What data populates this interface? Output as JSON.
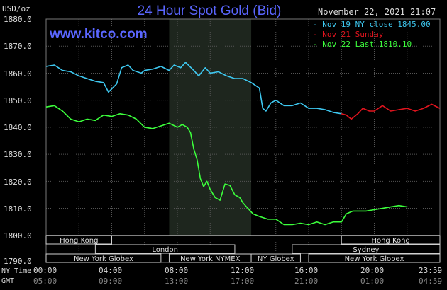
{
  "header": {
    "title": "24 Hour Spot Gold (Bid)",
    "site": "www.kitco.com",
    "unit": "USD/oz",
    "timestamp": "November 22, 2021 21:07"
  },
  "colors": {
    "background": "#000000",
    "grid": "#555555",
    "nymex_band": "#1e261e",
    "blue": "#3ec8f0",
    "red": "#e0141e",
    "green": "#3cff3c",
    "title_blue": "#5a66ff",
    "session_box": "#d0d0d0"
  },
  "side_labels": {
    "ny_time": "NY Time",
    "gmt": "GMT"
  },
  "chart_data": {
    "type": "line",
    "title": "24 Hour Spot Gold (Bid)",
    "ylabel": "USD/oz",
    "ylim": [
      1790,
      1880
    ],
    "yticks": [
      "1880.0",
      "1870.0",
      "1860.0",
      "1850.0",
      "1840.0",
      "1830.0",
      "1820.0",
      "1810.0",
      "1800.0",
      "1790.0"
    ],
    "x_ny_ticks": [
      "00:00",
      "04:00",
      "08:00",
      "12:00",
      "16:00",
      "20:00",
      "23:59"
    ],
    "x_gmt_ticks": [
      "05:00",
      "09:00",
      "13:00",
      "17:00",
      "21:00",
      "01:00",
      "04:59"
    ],
    "x_hours": [
      0,
      4,
      8,
      12,
      16,
      20,
      24
    ],
    "grid": true,
    "legend_placement": "top-right",
    "series": [
      {
        "name": "Nov 19 NY close 1845.00",
        "color": "#3ec8f0",
        "points": [
          [
            0,
            1862.5
          ],
          [
            0.5,
            1863
          ],
          [
            1,
            1861
          ],
          [
            1.5,
            1860.5
          ],
          [
            2,
            1859
          ],
          [
            2.5,
            1858
          ],
          [
            3,
            1857
          ],
          [
            3.5,
            1856.5
          ],
          [
            3.8,
            1853
          ],
          [
            4.3,
            1856
          ],
          [
            4.6,
            1862
          ],
          [
            5,
            1863
          ],
          [
            5.3,
            1861
          ],
          [
            5.8,
            1860
          ],
          [
            6,
            1861
          ],
          [
            6.5,
            1861.5
          ],
          [
            7,
            1862.5
          ],
          [
            7.5,
            1861
          ],
          [
            7.8,
            1863
          ],
          [
            8.2,
            1862
          ],
          [
            8.5,
            1864
          ],
          [
            9,
            1861
          ],
          [
            9.3,
            1859
          ],
          [
            9.7,
            1862
          ],
          [
            10,
            1860
          ],
          [
            10.5,
            1860.5
          ],
          [
            11,
            1859
          ],
          [
            11.5,
            1858
          ],
          [
            12,
            1858
          ],
          [
            12.5,
            1856.5
          ],
          [
            13,
            1854.5
          ],
          [
            13.2,
            1847
          ],
          [
            13.4,
            1846
          ],
          [
            13.7,
            1849
          ],
          [
            14,
            1850
          ],
          [
            14.5,
            1848
          ],
          [
            15,
            1848
          ],
          [
            15.5,
            1849
          ],
          [
            16,
            1847
          ],
          [
            16.5,
            1847
          ],
          [
            17,
            1846.5
          ],
          [
            17.5,
            1845.5
          ],
          [
            18,
            1845
          ]
        ]
      },
      {
        "name": "Nov 21 Sunday",
        "color": "#e0141e",
        "points": [
          [
            18,
            1845
          ],
          [
            18.3,
            1844.5
          ],
          [
            18.6,
            1843
          ],
          [
            19,
            1845
          ],
          [
            19.3,
            1847
          ],
          [
            19.7,
            1846
          ],
          [
            20,
            1846
          ],
          [
            20.5,
            1848
          ],
          [
            21,
            1846
          ],
          [
            21.5,
            1846.5
          ],
          [
            22,
            1847
          ],
          [
            22.5,
            1846
          ],
          [
            23,
            1847
          ],
          [
            23.5,
            1848.5
          ],
          [
            23.99,
            1847
          ]
        ]
      },
      {
        "name": "Nov 22 Last 1810.10",
        "color": "#3cff3c",
        "points": [
          [
            0,
            1847.5
          ],
          [
            0.5,
            1848
          ],
          [
            1,
            1846
          ],
          [
            1.5,
            1843
          ],
          [
            2,
            1842
          ],
          [
            2.5,
            1843
          ],
          [
            3,
            1842.5
          ],
          [
            3.5,
            1844.5
          ],
          [
            4,
            1844
          ],
          [
            4.5,
            1845
          ],
          [
            5,
            1844.5
          ],
          [
            5.5,
            1843
          ],
          [
            6,
            1840
          ],
          [
            6.5,
            1839.5
          ],
          [
            7,
            1840.5
          ],
          [
            7.5,
            1841.5
          ],
          [
            8,
            1840
          ],
          [
            8.3,
            1841
          ],
          [
            8.6,
            1840
          ],
          [
            8.8,
            1838
          ],
          [
            9,
            1832
          ],
          [
            9.2,
            1828
          ],
          [
            9.4,
            1821
          ],
          [
            9.6,
            1818
          ],
          [
            9.8,
            1820
          ],
          [
            10,
            1817
          ],
          [
            10.3,
            1814
          ],
          [
            10.6,
            1813
          ],
          [
            10.9,
            1819
          ],
          [
            11.2,
            1818.5
          ],
          [
            11.5,
            1815
          ],
          [
            11.8,
            1814
          ],
          [
            12,
            1812
          ],
          [
            12.3,
            1810
          ],
          [
            12.6,
            1808
          ],
          [
            13,
            1807
          ],
          [
            13.5,
            1806
          ],
          [
            14,
            1806
          ],
          [
            14.5,
            1804
          ],
          [
            15,
            1804
          ],
          [
            15.5,
            1804.5
          ],
          [
            16,
            1804
          ],
          [
            16.5,
            1805
          ],
          [
            17,
            1804
          ],
          [
            17.5,
            1805
          ],
          [
            18,
            1805
          ],
          [
            18.3,
            1808
          ],
          [
            18.7,
            1809
          ],
          [
            19,
            1809
          ],
          [
            19.5,
            1809
          ],
          [
            20,
            1809.5
          ],
          [
            20.5,
            1810
          ],
          [
            21,
            1810.5
          ],
          [
            21.5,
            1811
          ],
          [
            22,
            1810.5
          ]
        ]
      }
    ],
    "sessions": [
      {
        "name": "Hong Kong",
        "start": 0,
        "end": 4,
        "row": 0
      },
      {
        "name": "Hong Kong",
        "start": 18,
        "end": 24,
        "row": 0
      },
      {
        "name": "London",
        "start": 3,
        "end": 11.5,
        "row": 1
      },
      {
        "name": "Sydney",
        "start": 15,
        "end": 24,
        "row": 1
      },
      {
        "name": "New York Globex",
        "start": 0,
        "end": 7,
        "row": 2
      },
      {
        "name": "New York NYMEX",
        "start": 7.5,
        "end": 12.5,
        "row": 2
      },
      {
        "name": "NY Globex",
        "start": 12.5,
        "end": 15.5,
        "row": 2
      },
      {
        "name": "New York Globex",
        "start": 16,
        "end": 24,
        "row": 2
      }
    ],
    "nymex_band": [
      7.5,
      12.5
    ]
  }
}
